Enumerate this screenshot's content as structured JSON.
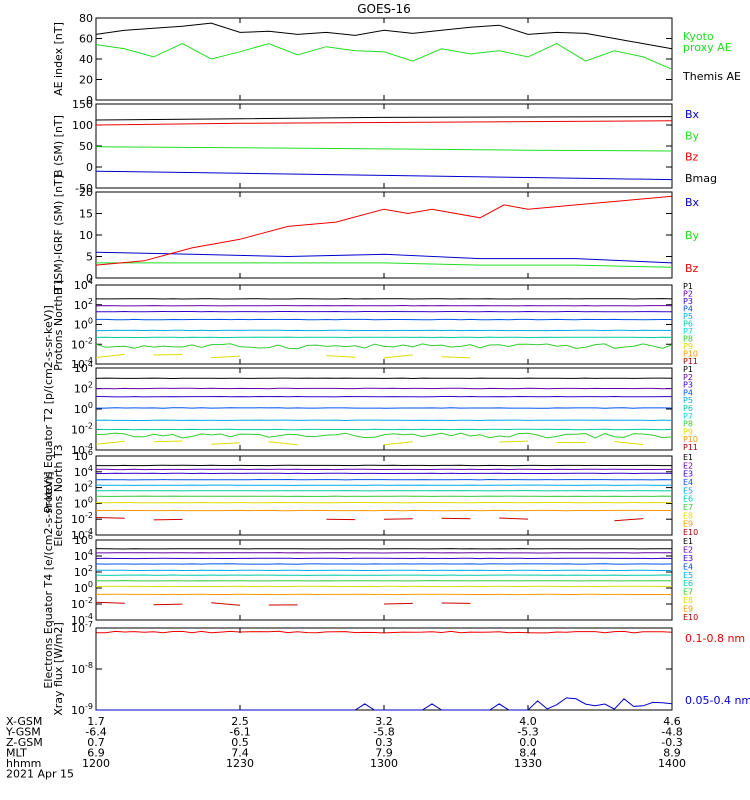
{
  "title": "GOES-16",
  "colors": {
    "black": "#000000",
    "red": "#ee0000",
    "green": "#22dd22",
    "blue": "#0000cc",
    "navy": "#0000aa",
    "purple": "#6600aa",
    "indigo": "#3300cc",
    "royal": "#0055ee",
    "cyan": "#00aaee",
    "teal": "#00ccaa",
    "aqua": "#00dddd",
    "yellow": "#dddd00",
    "orange": "#ff9900",
    "darkred": "#cc0000",
    "crimson": "#aa0000",
    "ltgreen": "#33cc33"
  },
  "chart_data": [
    {
      "type": "line",
      "ylabel": "AE index [nT]",
      "ylim": [
        0,
        80
      ],
      "yticks": [
        "0",
        "20",
        "40",
        "60",
        "80"
      ],
      "legend": [
        {
          "label": "Kyoto",
          "color": "green"
        },
        {
          "label": "proxy AE",
          "color": "green"
        },
        {
          "label": "Themis AE",
          "color": "black"
        }
      ],
      "series": [
        {
          "name": "Themis AE",
          "color": "black",
          "x": [
            0,
            6,
            12,
            18,
            24,
            30,
            36,
            42,
            48,
            54,
            60,
            66,
            72,
            78,
            84,
            90,
            96,
            102,
            108,
            114,
            120
          ],
          "values": [
            64,
            68,
            70,
            72,
            75,
            66,
            67,
            64,
            66,
            63,
            68,
            65,
            68,
            71,
            73,
            64,
            66,
            65,
            60,
            55,
            50
          ]
        },
        {
          "name": "Kyoto proxy AE",
          "color": "green",
          "x": [
            0,
            6,
            12,
            18,
            24,
            30,
            36,
            42,
            48,
            54,
            60,
            66,
            72,
            78,
            84,
            90,
            96,
            102,
            108,
            114,
            120
          ],
          "values": [
            54,
            50,
            42,
            55,
            40,
            47,
            55,
            44,
            52,
            48,
            47,
            38,
            50,
            45,
            48,
            42,
            55,
            38,
            48,
            42,
            30
          ]
        }
      ]
    },
    {
      "type": "line",
      "ylabel": "B (SM) [nT]",
      "ylim": [
        -50,
        150
      ],
      "yticks": [
        "-50",
        "0",
        "50",
        "100",
        "150"
      ],
      "legend": [
        {
          "label": "Bx",
          "color": "blue"
        },
        {
          "label": "By",
          "color": "green"
        },
        {
          "label": "Bz",
          "color": "red"
        },
        {
          "label": "Bmag",
          "color": "black"
        }
      ],
      "series": [
        {
          "name": "Bx",
          "color": "blue",
          "x": [
            0,
            30,
            60,
            90,
            120
          ],
          "values": [
            -10,
            -15,
            -20,
            -25,
            -30
          ]
        },
        {
          "name": "By",
          "color": "green",
          "x": [
            0,
            30,
            60,
            90,
            120
          ],
          "values": [
            48,
            46,
            43,
            40,
            38
          ]
        },
        {
          "name": "Bz",
          "color": "red",
          "x": [
            0,
            30,
            60,
            90,
            120
          ],
          "values": [
            100,
            104,
            106,
            108,
            110
          ]
        },
        {
          "name": "Bmag",
          "color": "black",
          "x": [
            0,
            30,
            60,
            90,
            120
          ],
          "values": [
            112,
            115,
            118,
            119,
            120
          ]
        }
      ]
    },
    {
      "type": "line",
      "ylabel": "B (SM)-IGRF (SM) [nT]",
      "ylim": [
        0,
        20
      ],
      "yticks": [
        "0",
        "5",
        "10",
        "15",
        "20"
      ],
      "legend": [
        {
          "label": "Bx",
          "color": "blue"
        },
        {
          "label": "By",
          "color": "green"
        },
        {
          "label": "Bz",
          "color": "red"
        }
      ],
      "series": [
        {
          "name": "Bx",
          "color": "blue",
          "x": [
            0,
            20,
            40,
            60,
            80,
            100,
            120
          ],
          "values": [
            6,
            5.5,
            5,
            5.5,
            4.5,
            4.5,
            3.5
          ]
        },
        {
          "name": "By",
          "color": "green",
          "x": [
            0,
            20,
            40,
            60,
            80,
            100,
            120
          ],
          "values": [
            3.5,
            3.5,
            3.5,
            3.5,
            3,
            3,
            2.5
          ]
        },
        {
          "name": "Bz",
          "color": "red",
          "x": [
            0,
            10,
            20,
            30,
            40,
            50,
            60,
            65,
            70,
            80,
            85,
            90,
            100,
            110,
            120
          ],
          "values": [
            3,
            4,
            7,
            9,
            12,
            13,
            16,
            15,
            16,
            14,
            17,
            16,
            17,
            18,
            19
          ]
        }
      ]
    },
    {
      "type": "line",
      "ylabel": "Protons North T1",
      "log": true,
      "ylim_exp": [
        -4,
        4
      ],
      "yticks": [
        "10-4",
        "10-2",
        "100",
        "102",
        "104"
      ],
      "legend": [
        {
          "label": "P1",
          "color": "black"
        },
        {
          "label": "P2",
          "color": "purple"
        },
        {
          "label": "P3",
          "color": "indigo"
        },
        {
          "label": "P4",
          "color": "royal"
        },
        {
          "label": "P5",
          "color": "cyan"
        },
        {
          "label": "P6",
          "color": "teal"
        },
        {
          "label": "P7",
          "color": "aqua"
        },
        {
          "label": "P8",
          "color": "ltgreen"
        },
        {
          "label": "P9",
          "color": "yellow"
        },
        {
          "label": "P10",
          "color": "orange"
        },
        {
          "label": "P11",
          "color": "crimson"
        }
      ],
      "series": [
        {
          "name": "P1",
          "color": "black",
          "level": 2.6
        },
        {
          "name": "P2",
          "color": "purple",
          "level": 1.9
        },
        {
          "name": "P3",
          "color": "indigo",
          "level": 1.3
        },
        {
          "name": "P4",
          "color": "royal",
          "level": 0.5
        },
        {
          "name": "P5",
          "color": "cyan",
          "level": -0.6
        },
        {
          "name": "P6",
          "color": "teal",
          "level": -1.3
        },
        {
          "name": "P7",
          "color": "ltgreen",
          "level": -2.2,
          "noisy": true
        },
        {
          "name": "P8",
          "color": "yellow",
          "level": -3.2,
          "sparse": true
        }
      ]
    },
    {
      "type": "line",
      "ylabel": "Protons Equator T2 [p/(cm2-s-sr-keV)]",
      "log": true,
      "ylim_exp": [
        -4,
        4
      ],
      "yticks": [
        "10-4",
        "10-2",
        "100",
        "102",
        "104"
      ],
      "legend": [
        {
          "label": "P1",
          "color": "black"
        },
        {
          "label": "P2",
          "color": "purple"
        },
        {
          "label": "P3",
          "color": "indigo"
        },
        {
          "label": "P4",
          "color": "royal"
        },
        {
          "label": "P5",
          "color": "cyan"
        },
        {
          "label": "P6",
          "color": "teal"
        },
        {
          "label": "P7",
          "color": "aqua"
        },
        {
          "label": "P8",
          "color": "ltgreen"
        },
        {
          "label": "P9",
          "color": "yellow"
        },
        {
          "label": "P10",
          "color": "orange"
        },
        {
          "label": "P11",
          "color": "crimson"
        }
      ],
      "series": [
        {
          "name": "P1",
          "color": "black",
          "level": 3.0
        },
        {
          "name": "P2",
          "color": "purple",
          "level": 2.0
        },
        {
          "name": "P3",
          "color": "indigo",
          "level": 1.2
        },
        {
          "name": "P4",
          "color": "royal",
          "level": 0.1
        },
        {
          "name": "P5",
          "color": "cyan",
          "level": -1.1
        },
        {
          "name": "P6",
          "color": "teal",
          "level": -2.0
        },
        {
          "name": "P7",
          "color": "ltgreen",
          "level": -2.6,
          "noisy": true
        },
        {
          "name": "P8",
          "color": "yellow",
          "level": -3.3,
          "sparse": true
        }
      ]
    },
    {
      "type": "line",
      "ylabel": "Electrons North T3",
      "log": true,
      "ylim_exp": [
        -4,
        6
      ],
      "yticks": [
        "10-4",
        "10-2",
        "100",
        "102",
        "104",
        "106"
      ],
      "legend": [
        {
          "label": "E1",
          "color": "black"
        },
        {
          "label": "E2",
          "color": "purple"
        },
        {
          "label": "E3",
          "color": "indigo"
        },
        {
          "label": "E4",
          "color": "royal"
        },
        {
          "label": "E5",
          "color": "cyan"
        },
        {
          "label": "E6",
          "color": "teal"
        },
        {
          "label": "E7",
          "color": "ltgreen"
        },
        {
          "label": "E8",
          "color": "yellow"
        },
        {
          "label": "E9",
          "color": "orange"
        },
        {
          "label": "E10",
          "color": "crimson"
        }
      ],
      "series": [
        {
          "name": "E1",
          "color": "black",
          "level": 4.8
        },
        {
          "name": "E2",
          "color": "purple",
          "level": 4.3
        },
        {
          "name": "E3",
          "color": "indigo",
          "level": 3.8
        },
        {
          "name": "E4",
          "color": "royal",
          "level": 3.0
        },
        {
          "name": "E5",
          "color": "cyan",
          "level": 2.3
        },
        {
          "name": "E6",
          "color": "teal",
          "level": 1.6
        },
        {
          "name": "E7",
          "color": "ltgreen",
          "level": 0.9
        },
        {
          "name": "E8",
          "color": "yellow",
          "level": 0.1
        },
        {
          "name": "E9",
          "color": "orange",
          "level": -0.9
        },
        {
          "name": "E10",
          "color": "darkred",
          "level": -2.0,
          "sparse": true
        }
      ]
    },
    {
      "type": "line",
      "ylabel": "Electrons Equator T4 [e/(cm2-s-sr-keV)]",
      "log": true,
      "ylim_exp": [
        -4,
        6
      ],
      "yticks": [
        "10-4",
        "10-2",
        "100",
        "102",
        "104",
        "106"
      ],
      "legend": [
        {
          "label": "E1",
          "color": "black"
        },
        {
          "label": "E2",
          "color": "purple"
        },
        {
          "label": "E3",
          "color": "indigo"
        },
        {
          "label": "E4",
          "color": "royal"
        },
        {
          "label": "E5",
          "color": "cyan"
        },
        {
          "label": "E6",
          "color": "teal"
        },
        {
          "label": "E7",
          "color": "ltgreen"
        },
        {
          "label": "E8",
          "color": "yellow"
        },
        {
          "label": "E9",
          "color": "orange"
        },
        {
          "label": "E10",
          "color": "crimson"
        }
      ],
      "series": [
        {
          "name": "E1",
          "color": "black",
          "level": 4.9
        },
        {
          "name": "E2",
          "color": "purple",
          "level": 4.4
        },
        {
          "name": "E3",
          "color": "indigo",
          "level": 3.7
        },
        {
          "name": "E4",
          "color": "royal",
          "level": 3.0
        },
        {
          "name": "E5",
          "color": "cyan",
          "level": 2.2
        },
        {
          "name": "E6",
          "color": "teal",
          "level": 1.6
        },
        {
          "name": "E7",
          "color": "ltgreen",
          "level": 0.9
        },
        {
          "name": "E8",
          "color": "yellow",
          "level": 0.2
        },
        {
          "name": "E9",
          "color": "orange",
          "level": -0.8
        },
        {
          "name": "E10",
          "color": "darkred",
          "level": -2.0,
          "sparse": true
        }
      ]
    },
    {
      "type": "line",
      "ylabel": "Xray flux [W/m2]",
      "log": true,
      "ylim_exp": [
        -9,
        -7
      ],
      "yticks": [
        "10-9",
        "10-8",
        "10-7"
      ],
      "legend": [
        {
          "label": "0.1-0.8 nm",
          "color": "red"
        },
        {
          "label": "0.05-0.4 nm",
          "color": "blue"
        }
      ],
      "series": [
        {
          "name": "0.1-0.8 nm",
          "color": "red",
          "level": -7.1
        },
        {
          "name": "0.05-0.4 nm",
          "color": "blue",
          "level": -9.0,
          "bumps": true
        }
      ]
    }
  ],
  "x_axis": {
    "row_labels": [
      "X-GSM",
      "Y-GSM",
      "Z-GSM",
      "MLT",
      "hhmm",
      "2021 Apr 15"
    ],
    "columns": [
      [
        "1.7",
        "-6.4",
        "0.7",
        "6.9",
        "1200"
      ],
      [
        "2.5",
        "-6.1",
        "0.5",
        "7.4",
        "1230"
      ],
      [
        "3.2",
        "-5.8",
        "0.3",
        "7.9",
        "1300"
      ],
      [
        "4.0",
        "-5.3",
        "0.0",
        "8.4",
        "1330"
      ],
      [
        "4.6",
        "-4.8",
        "-0.3",
        "8.9",
        "1400"
      ]
    ]
  }
}
